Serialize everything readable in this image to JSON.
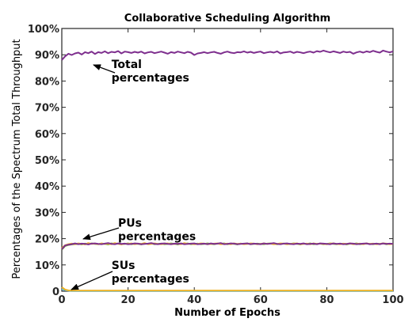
{
  "chart_data": {
    "type": "line",
    "title": "Collaborative Scheduling Algorithm",
    "xlabel": "Number of Epochs",
    "ylabel": "Percentages of the Spectrum Total Throughput",
    "xlim": [
      0,
      100
    ],
    "ylim": [
      0,
      100
    ],
    "xticks": [
      "0",
      "20",
      "40",
      "60",
      "80",
      "100"
    ],
    "yticks": [
      "0",
      "10%",
      "20%",
      "30%",
      "40%",
      "50%",
      "60%",
      "70%",
      "80%",
      "90%",
      "100%"
    ],
    "grid": false,
    "series": [
      {
        "color": "#7e2f8e",
        "values": [
          88.0,
          89.4,
          90.4,
          89.9,
          90.5,
          90.8,
          90.1,
          91.0,
          90.6,
          91.2,
          90.3,
          91.0,
          90.7,
          91.3,
          90.6,
          91.1,
          90.9,
          91.4,
          90.5,
          91.2,
          91.0,
          90.7,
          91.1,
          90.8,
          91.2,
          90.5,
          90.9,
          91.1,
          90.6,
          90.9,
          91.2,
          90.8,
          90.4,
          91.0,
          90.7,
          91.2,
          90.9,
          90.6,
          91.1,
          90.8,
          89.9,
          90.5,
          90.7,
          91.0,
          90.6,
          90.9,
          91.1,
          90.7,
          90.4,
          90.9,
          91.2,
          90.8,
          90.6,
          91.0,
          90.9,
          91.3,
          90.8,
          91.1,
          90.7,
          91.0,
          91.2,
          90.6,
          90.9,
          91.1,
          90.8,
          91.3,
          90.5,
          90.9,
          91.0,
          91.2,
          90.7,
          91.1,
          90.9,
          90.6,
          91.0,
          91.2,
          90.8,
          91.4,
          91.1,
          91.6,
          91.2,
          90.9,
          91.3,
          91.0,
          90.7,
          91.2,
          90.9,
          91.1,
          90.4,
          90.9,
          91.2,
          90.8,
          91.3,
          91.0,
          91.5,
          91.1,
          90.8,
          91.6,
          91.2,
          90.9,
          91.3
        ]
      },
      {
        "color": "#77ac30",
        "values": [
          15.8,
          17.2,
          17.6,
          17.8,
          17.9,
          18.0,
          17.8,
          18.1,
          17.9,
          18.2,
          18.0,
          17.9,
          18.1,
          18.0,
          17.8,
          18.2,
          18.0,
          18.1,
          17.9,
          18.0,
          18.2,
          17.9,
          18.1,
          18.0,
          17.8,
          18.1,
          18.0,
          18.2,
          17.9,
          18.0,
          18.1,
          17.9,
          18.0,
          18.2,
          18.0,
          17.8,
          18.1,
          18.0,
          18.2,
          17.9,
          18.0,
          18.1,
          17.9,
          18.0,
          18.2,
          18.0,
          17.9,
          18.1,
          18.0,
          18.2,
          17.9,
          18.1,
          18.0,
          17.8,
          18.1,
          18.0,
          18.2,
          17.9,
          18.0,
          18.1,
          18.0,
          17.9,
          18.1,
          18.2,
          18.0,
          17.9,
          18.0,
          18.1,
          17.9,
          18.0,
          18.2,
          18.0,
          17.8,
          18.1,
          18.0,
          18.2,
          17.9,
          18.0,
          18.1,
          17.9,
          18.0,
          18.2,
          18.0,
          17.9,
          18.1,
          18.0,
          17.8,
          18.1,
          18.0,
          18.2,
          17.9,
          18.0,
          18.1,
          18.0,
          17.9,
          18.1,
          18.0,
          18.2,
          17.9,
          18.0,
          18.1
        ]
      },
      {
        "color": "#edb120",
        "values": [
          16.4,
          17.5,
          17.9,
          18.1,
          17.9,
          18.2,
          18.0,
          17.8,
          18.3,
          18.0,
          18.1,
          17.9,
          18.2,
          18.0,
          18.1,
          17.9,
          18.3,
          18.0,
          17.8,
          18.1,
          18.0,
          18.2,
          17.9,
          18.1,
          18.0,
          18.3,
          17.9,
          18.0,
          18.2,
          18.0,
          17.9,
          18.1,
          18.2,
          17.9,
          18.0,
          18.1,
          17.9,
          18.3,
          18.0,
          18.1,
          17.9,
          18.0,
          18.2,
          18.1,
          17.9,
          18.0,
          18.1,
          18.2,
          17.9,
          18.0,
          18.1,
          17.9,
          18.2,
          18.0,
          18.1,
          17.9,
          18.0,
          18.2,
          18.1,
          17.9,
          18.0,
          18.2,
          18.0,
          18.1,
          17.9,
          18.0,
          18.2,
          18.1,
          17.9,
          18.0,
          18.1,
          18.2,
          17.9,
          18.0,
          18.1,
          17.9,
          18.2,
          18.0,
          18.1,
          18.0,
          17.9,
          18.1,
          18.2,
          18.0,
          17.9,
          18.1,
          18.0,
          18.2,
          17.9,
          18.0,
          18.1,
          17.9,
          18.2,
          18.0,
          18.1,
          17.9,
          18.0,
          18.2,
          18.1,
          17.9,
          18.0
        ]
      },
      {
        "color": "#7e2f8e",
        "values": [
          16.0,
          17.4,
          17.7,
          17.9,
          18.2,
          17.9,
          18.1,
          18.0,
          17.8,
          18.1,
          18.2,
          18.0,
          17.9,
          18.1,
          18.3,
          18.0,
          17.9,
          18.2,
          18.0,
          18.1,
          17.9,
          18.0,
          18.2,
          18.1,
          17.9,
          18.0,
          18.1,
          18.3,
          18.0,
          17.9,
          18.1,
          18.2,
          18.0,
          17.9,
          18.1,
          18.0,
          18.2,
          17.9,
          18.0,
          18.1,
          18.2,
          17.9,
          18.0,
          18.1,
          17.9,
          18.2,
          18.0,
          18.1,
          18.3,
          17.9,
          18.0,
          18.2,
          18.1,
          17.9,
          18.0,
          18.1,
          18.2,
          17.9,
          18.1,
          18.0,
          17.9,
          18.2,
          18.0,
          18.1,
          18.3,
          18.0,
          17.9,
          18.1,
          18.2,
          18.0,
          17.9,
          18.1,
          18.0,
          18.2,
          17.9,
          18.0,
          18.1,
          17.9,
          18.2,
          18.1,
          18.0,
          17.9,
          18.2,
          18.0,
          18.1,
          17.9,
          18.0,
          18.2,
          18.1,
          17.9,
          18.0,
          18.1,
          18.2,
          17.9,
          18.0,
          18.1,
          17.9,
          18.2,
          18.0,
          18.1,
          18.0
        ]
      },
      {
        "color": "#4dbeee",
        "values": [
          0.8,
          0.4,
          0.2,
          0.1,
          0.1,
          0.1,
          0.1,
          0.1,
          0.1,
          0.1,
          0.1,
          0.1,
          0.1,
          0.1,
          0.1,
          0.1,
          0.1,
          0.1,
          0.1,
          0.1,
          0.1,
          0.1,
          0.1,
          0.1,
          0.1,
          0.1,
          0.1,
          0.1,
          0.1,
          0.1,
          0.1,
          0.1,
          0.1,
          0.1,
          0.1,
          0.1,
          0.1,
          0.1,
          0.1,
          0.1,
          0.1,
          0.1,
          0.1,
          0.1,
          0.1,
          0.1,
          0.1,
          0.1,
          0.1,
          0.1,
          0.1,
          0.1,
          0.1,
          0.1,
          0.1,
          0.1,
          0.1,
          0.1,
          0.1,
          0.1,
          0.1,
          0.1,
          0.1,
          0.1,
          0.1,
          0.1,
          0.1,
          0.1,
          0.1,
          0.1,
          0.1,
          0.1,
          0.1,
          0.1,
          0.1,
          0.1,
          0.1,
          0.1,
          0.1,
          0.1,
          0.1,
          0.1,
          0.1,
          0.1,
          0.1,
          0.1,
          0.1,
          0.1,
          0.1,
          0.1,
          0.1,
          0.1,
          0.1,
          0.1,
          0.1,
          0.1,
          0.1,
          0.1,
          0.1,
          0.1,
          0.1
        ]
      },
      {
        "color": "#edb120",
        "values": [
          1.5,
          0.6,
          0.3,
          0.2,
          0.2,
          0.2,
          0.2,
          0.2,
          0.2,
          0.2,
          0.2,
          0.2,
          0.2,
          0.2,
          0.2,
          0.2,
          0.2,
          0.2,
          0.2,
          0.2,
          0.2,
          0.2,
          0.2,
          0.2,
          0.2,
          0.2,
          0.2,
          0.2,
          0.2,
          0.2,
          0.2,
          0.2,
          0.2,
          0.2,
          0.2,
          0.2,
          0.2,
          0.2,
          0.2,
          0.2,
          0.2,
          0.2,
          0.2,
          0.2,
          0.2,
          0.2,
          0.2,
          0.2,
          0.2,
          0.2,
          0.2,
          0.2,
          0.2,
          0.2,
          0.2,
          0.2,
          0.2,
          0.2,
          0.2,
          0.2,
          0.2,
          0.2,
          0.2,
          0.2,
          0.2,
          0.2,
          0.2,
          0.2,
          0.2,
          0.2,
          0.2,
          0.2,
          0.2,
          0.2,
          0.2,
          0.2,
          0.2,
          0.2,
          0.2,
          0.2,
          0.2,
          0.2,
          0.2,
          0.2,
          0.2,
          0.2,
          0.2,
          0.2,
          0.2,
          0.2,
          0.2,
          0.2,
          0.2,
          0.2,
          0.2,
          0.2,
          0.2,
          0.2,
          0.2,
          0.2,
          0.2
        ]
      }
    ],
    "annotations": [
      {
        "lines": [
          "Total",
          "percentages"
        ],
        "x": 15,
        "y": 85
      },
      {
        "lines": [
          "PUs",
          "percentages"
        ],
        "x": 17,
        "y": 24.5
      },
      {
        "lines": [
          "SUs",
          "percentages"
        ],
        "x": 15,
        "y": 8.5
      }
    ]
  }
}
